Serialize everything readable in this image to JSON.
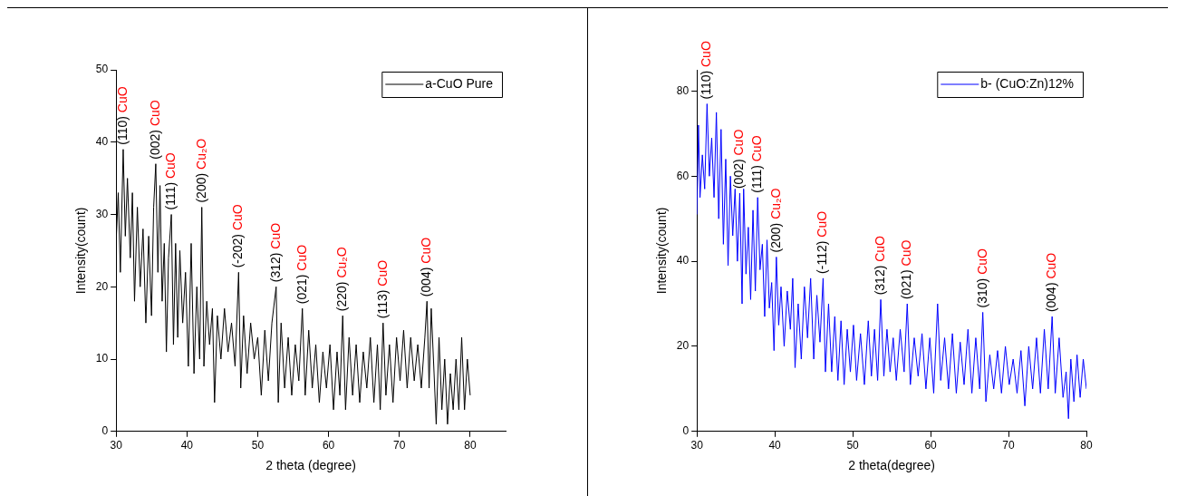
{
  "chart_data": [
    {
      "type": "line",
      "xlabel": "2 theta (degree)",
      "ylabel": "Intensity(count)",
      "xlim": [
        30,
        85
      ],
      "xticks": [
        30,
        40,
        50,
        60,
        70,
        80
      ],
      "ylim": [
        0,
        50
      ],
      "yticks": [
        0,
        10,
        20,
        30,
        40,
        50
      ],
      "grid": false,
      "legend": "top right",
      "marker": "none",
      "x": [
        30,
        30.3,
        30.6,
        31,
        31.3,
        31.6,
        32,
        32.3,
        32.6,
        33,
        33.4,
        33.8,
        34.2,
        34.6,
        35,
        35.3,
        35.6,
        35.9,
        36.2,
        36.5,
        36.8,
        37.1,
        37.4,
        37.8,
        38.1,
        38.4,
        38.7,
        39,
        39.4,
        39.8,
        40.2,
        40.6,
        41,
        41.4,
        41.8,
        42.1,
        42.4,
        42.8,
        43.2,
        43.6,
        43.9,
        44.3,
        44.8,
        45.3,
        45.8,
        46.3,
        46.8,
        47.3,
        47.6,
        48,
        48.5,
        49,
        49.5,
        50,
        50.5,
        51,
        51.5,
        52,
        52.6,
        52.9,
        53.3,
        53.8,
        54.3,
        54.8,
        55.3,
        55.8,
        56.3,
        56.7,
        57.2,
        57.7,
        58.2,
        58.7,
        59.2,
        59.7,
        60.2,
        60.7,
        61.2,
        61.6,
        62,
        62.4,
        62.9,
        63.4,
        63.9,
        64.4,
        64.9,
        65.4,
        65.9,
        66.4,
        66.9,
        67.3,
        67.7,
        68.1,
        68.6,
        69.1,
        69.6,
        70.1,
        70.6,
        71.1,
        71.6,
        72.1,
        72.6,
        73.1,
        73.6,
        73.9,
        74.2,
        74.5,
        74.9,
        75.2,
        75.6,
        76,
        76.4,
        76.8,
        77.2,
        77.6,
        78,
        78.4,
        78.8,
        79.2,
        79.6,
        80
      ],
      "series": [
        {
          "name": "a-CuO Pure",
          "color": "#000000",
          "values": [
            26,
            33,
            22,
            39,
            27,
            35,
            24,
            33,
            18,
            31,
            20,
            28,
            15,
            27,
            16,
            31,
            37,
            22,
            34,
            18,
            26,
            11,
            24,
            30,
            12,
            26,
            13,
            25,
            15,
            22,
            9,
            26,
            8,
            20,
            10,
            31,
            9,
            18,
            12,
            17,
            4,
            16,
            10,
            17,
            11,
            15,
            9,
            22,
            6,
            16,
            8,
            15,
            10,
            13,
            5,
            14,
            7,
            15,
            20,
            4,
            15,
            6,
            13,
            5,
            12,
            7,
            17,
            5,
            14,
            6,
            12,
            4,
            11,
            6,
            12,
            3,
            11,
            5,
            16,
            3,
            13,
            5,
            12,
            4,
            11,
            6,
            13,
            4,
            12,
            3,
            15,
            5,
            12,
            4,
            13,
            7,
            14,
            6,
            13,
            7,
            12,
            6,
            13,
            18,
            6,
            17,
            8,
            1,
            13,
            3,
            10,
            1,
            8,
            3,
            10,
            3,
            13,
            3,
            10,
            5
          ]
        }
      ],
      "annotations": [
        {
          "text": "(110) CuO",
          "x": 31,
          "y": 39
        },
        {
          "text": "(002) CuO",
          "x": 35.6,
          "y": 37
        },
        {
          "text": "(111) CuO",
          "x": 37.8,
          "y": 30
        },
        {
          "text": "(200) Cu₂O",
          "x": 42.1,
          "y": 31
        },
        {
          "text": "(-202) CuO",
          "x": 47.3,
          "y": 22
        },
        {
          "text": "(312) CuO",
          "x": 52.6,
          "y": 20
        },
        {
          "text": "(021) CuO",
          "x": 56.3,
          "y": 17
        },
        {
          "text": "(220) Cu₂O",
          "x": 62,
          "y": 16
        },
        {
          "text": "(113) CuO",
          "x": 67.7,
          "y": 15
        },
        {
          "text": "(004) CuO",
          "x": 73.9,
          "y": 18
        }
      ]
    },
    {
      "type": "line",
      "xlabel": "2 theta(degree)",
      "ylabel": "Intensity(count)",
      "xlim": [
        30,
        80
      ],
      "xticks": [
        30,
        40,
        50,
        60,
        70,
        80
      ],
      "ylim": [
        0,
        85
      ],
      "yticks": [
        0,
        20,
        40,
        60,
        80
      ],
      "grid": false,
      "legend": "top right",
      "marker": "none",
      "x": [
        30,
        30.2,
        30.4,
        30.7,
        31,
        31.3,
        31.6,
        31.9,
        32.2,
        32.5,
        32.8,
        33.1,
        33.4,
        33.7,
        34,
        34.3,
        34.6,
        34.9,
        35.2,
        35.5,
        35.8,
        36,
        36.3,
        36.6,
        36.9,
        37.2,
        37.5,
        37.8,
        38.1,
        38.4,
        38.7,
        39,
        39.3,
        39.6,
        39.9,
        40.2,
        40.5,
        40.8,
        41.2,
        41.6,
        42,
        42.3,
        42.6,
        43,
        43.4,
        43.8,
        44.2,
        44.6,
        45,
        45.4,
        45.8,
        46.2,
        46.5,
        46.9,
        47.3,
        47.7,
        48.1,
        48.5,
        48.9,
        49.3,
        49.7,
        50.1,
        50.5,
        51,
        51.5,
        52,
        52.4,
        52.8,
        53.2,
        53.6,
        54,
        54.4,
        54.8,
        55.2,
        55.6,
        56.1,
        56.6,
        57,
        57.4,
        57.9,
        58.4,
        58.9,
        59.4,
        59.9,
        60.4,
        60.9,
        61.3,
        61.8,
        62.3,
        62.8,
        63.3,
        63.8,
        64.3,
        64.8,
        65.3,
        65.8,
        66.3,
        66.7,
        67.1,
        67.6,
        68.1,
        68.6,
        69.1,
        69.6,
        70.1,
        70.6,
        71.1,
        71.6,
        72.1,
        72.6,
        73.1,
        73.6,
        74.1,
        74.6,
        75.1,
        75.6,
        76,
        76.5,
        77,
        77.4,
        77.7,
        78,
        78.4,
        78.8,
        79.2,
        79.6,
        80
      ],
      "series": [
        {
          "name": "b- (CuO:Zn)12%",
          "color": "#0000ff",
          "values": [
            51,
            72,
            55,
            65,
            57,
            77,
            60,
            69,
            55,
            75,
            50,
            71,
            44,
            64,
            39,
            60,
            46,
            57,
            40,
            56,
            30,
            57,
            37,
            48,
            31,
            52,
            33,
            55,
            38,
            44,
            27,
            45,
            29,
            35,
            19,
            41,
            25,
            34,
            20,
            33,
            24,
            36,
            15,
            30,
            17,
            34,
            22,
            36,
            17,
            32,
            21,
            36,
            14,
            30,
            14,
            27,
            12,
            26,
            11,
            24,
            14,
            25,
            12,
            23,
            11,
            26,
            13,
            24,
            12,
            31,
            13,
            24,
            14,
            22,
            12,
            24,
            14,
            30,
            11,
            22,
            13,
            23,
            10,
            22,
            9,
            30,
            12,
            22,
            10,
            23,
            9,
            21,
            11,
            24,
            9,
            22,
            10,
            28,
            7,
            18,
            10,
            19,
            9,
            20,
            11,
            17,
            9,
            19,
            6,
            20,
            10,
            22,
            9,
            24,
            10,
            27,
            9,
            22,
            8,
            14,
            3,
            17,
            7,
            18,
            8,
            17,
            10
          ]
        }
      ],
      "annotations": [
        {
          "text": "(110) CuO",
          "x": 31.3,
          "y": 77
        },
        {
          "text": "(002) CuO",
          "x": 35.5,
          "y": 56
        },
        {
          "text": "(111) CuO",
          "x": 37.8,
          "y": 55
        },
        {
          "text": "(200) Cu₂O",
          "x": 40.2,
          "y": 41
        },
        {
          "text": "(-112) CuO",
          "x": 46.2,
          "y": 36
        },
        {
          "text": "(312) CuO",
          "x": 53.6,
          "y": 31
        },
        {
          "text": "(021) CuO",
          "x": 57,
          "y": 30
        },
        {
          "text": "(310) CuO",
          "x": 66.7,
          "y": 28
        },
        {
          "text": "(004) CuO",
          "x": 75.6,
          "y": 27
        }
      ]
    }
  ]
}
